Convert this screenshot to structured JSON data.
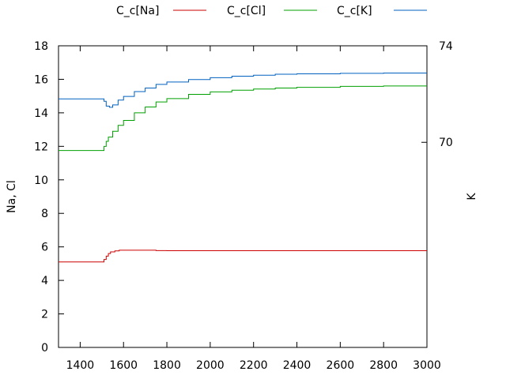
{
  "chart_data": {
    "type": "line",
    "xlabel": "",
    "ylabel": "Na, Cl",
    "y2label": "K",
    "xlim": [
      1300,
      3000
    ],
    "ylim": [
      0,
      18
    ],
    "y2lim": [
      61.5,
      74
    ],
    "xticks": [
      1400,
      1600,
      1800,
      2000,
      2200,
      2400,
      2600,
      2800,
      3000
    ],
    "yticks": [
      0,
      2,
      4,
      6,
      8,
      10,
      12,
      14,
      16,
      18
    ],
    "y2ticks": [
      70,
      74
    ],
    "grid": false,
    "legend_position": "top",
    "series": [
      {
        "name": "C_c[Na]",
        "color": "#cc0000",
        "axis": "left",
        "x": [
          1300,
          1500,
          1510,
          1520,
          1530,
          1540,
          1560,
          1580,
          1600,
          1650,
          1700,
          1750,
          1800,
          2000,
          2400,
          3000
        ],
        "y": [
          5.1,
          5.1,
          5.25,
          5.45,
          5.6,
          5.7,
          5.76,
          5.8,
          5.8,
          5.8,
          5.8,
          5.78,
          5.77,
          5.77,
          5.77,
          5.77
        ]
      },
      {
        "name": "C_c[Cl]",
        "color": "#00a000",
        "axis": "left",
        "x": [
          1300,
          1500,
          1510,
          1520,
          1530,
          1550,
          1575,
          1600,
          1650,
          1700,
          1750,
          1800,
          1900,
          2000,
          2100,
          2200,
          2300,
          2400,
          2600,
          2800,
          3000
        ],
        "y": [
          11.75,
          11.75,
          12.0,
          12.3,
          12.55,
          12.9,
          13.25,
          13.55,
          14.0,
          14.35,
          14.65,
          14.85,
          15.1,
          15.25,
          15.35,
          15.42,
          15.48,
          15.52,
          15.58,
          15.6,
          15.6
        ]
      },
      {
        "name": "C_c[K]",
        "color": "#0060c0",
        "axis": "right",
        "x": [
          1300,
          1500,
          1510,
          1520,
          1535,
          1550,
          1575,
          1600,
          1650,
          1700,
          1750,
          1800,
          1900,
          2000,
          2100,
          2200,
          2300,
          2400,
          2600,
          2800,
          3000
        ],
        "y": [
          71.8,
          71.8,
          71.7,
          71.5,
          71.45,
          71.55,
          71.75,
          71.9,
          72.1,
          72.25,
          72.4,
          72.5,
          72.6,
          72.68,
          72.74,
          72.78,
          72.82,
          72.84,
          72.86,
          72.87,
          72.87
        ]
      }
    ]
  }
}
